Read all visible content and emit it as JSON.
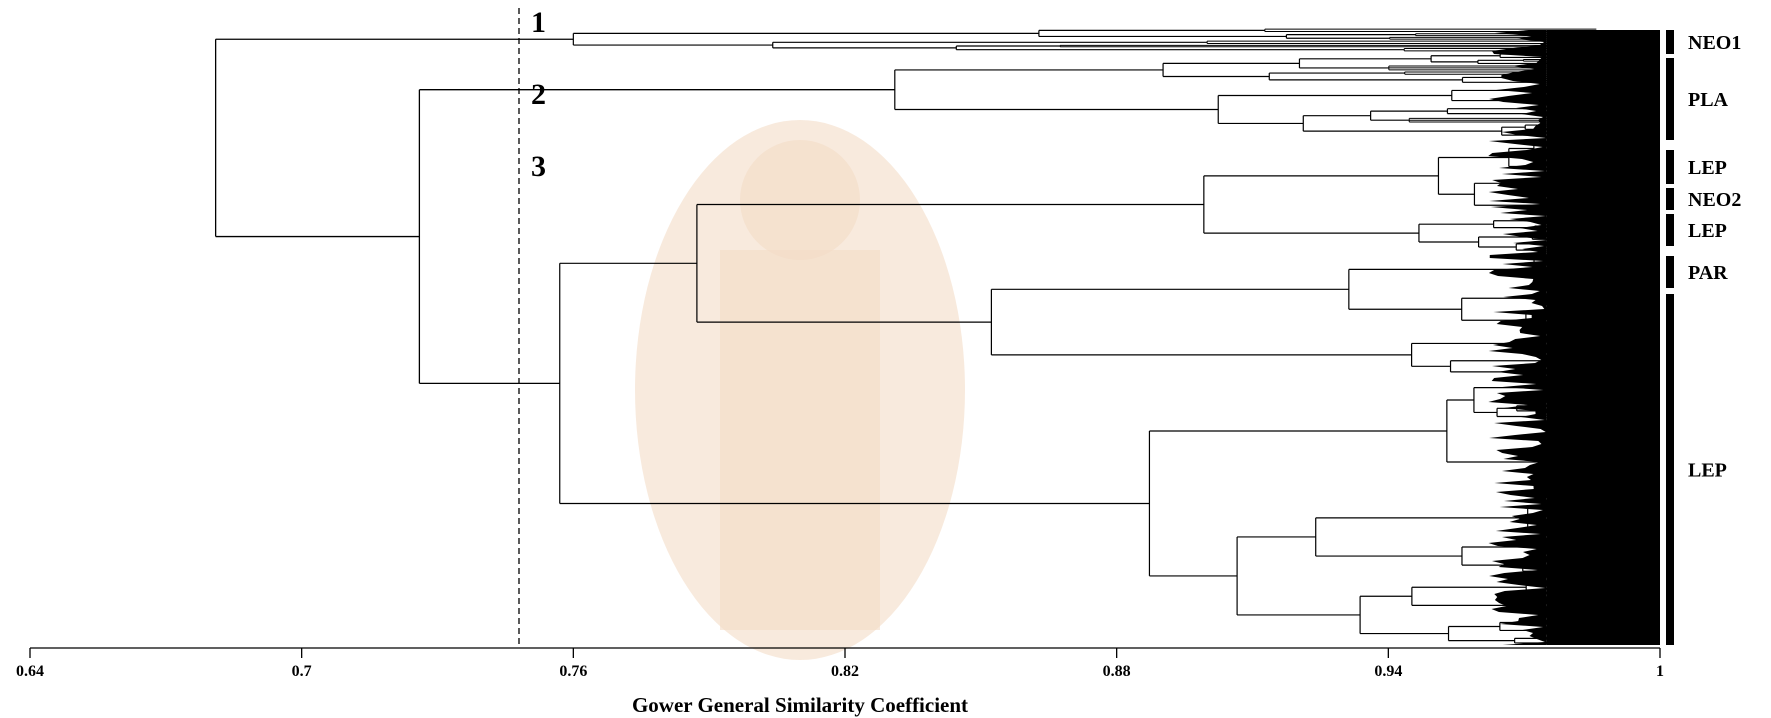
{
  "chart_data": {
    "type": "dendrogram",
    "xlabel": "Gower General Similarity Coefficient",
    "xlim": [
      0.64,
      1.0
    ],
    "x_ticks": [
      "0.64",
      "0.7",
      "0.76",
      "0.82",
      "0.88",
      "0.94",
      "1"
    ],
    "cut_line": {
      "value": 0.748,
      "style": "dashed"
    },
    "cut_labels": [
      "1",
      "2",
      "3"
    ],
    "groups": [
      {
        "label": "NEO1",
        "cluster": "1"
      },
      {
        "label": "PLA",
        "cluster": "2"
      },
      {
        "label": "LEP",
        "cluster": "3"
      },
      {
        "label": "NEO2",
        "cluster": "3"
      },
      {
        "label": "LEP",
        "cluster": "3"
      },
      {
        "label": "PAR",
        "cluster": "3"
      },
      {
        "label": "LEP",
        "cluster": "3"
      }
    ],
    "root_node_similarity": 0.681,
    "main_merges": [
      {
        "join": "1 + (2,3)",
        "similarity": 0.681
      },
      {
        "join": "2 + 3",
        "similarity": 0.726
      },
      {
        "join": "within 1",
        "similarity": 0.76
      },
      {
        "join": "within 2",
        "similarity": 0.831
      },
      {
        "join": "within 3",
        "similarity": 0.757
      }
    ],
    "grid": false,
    "legend": "none"
  }
}
